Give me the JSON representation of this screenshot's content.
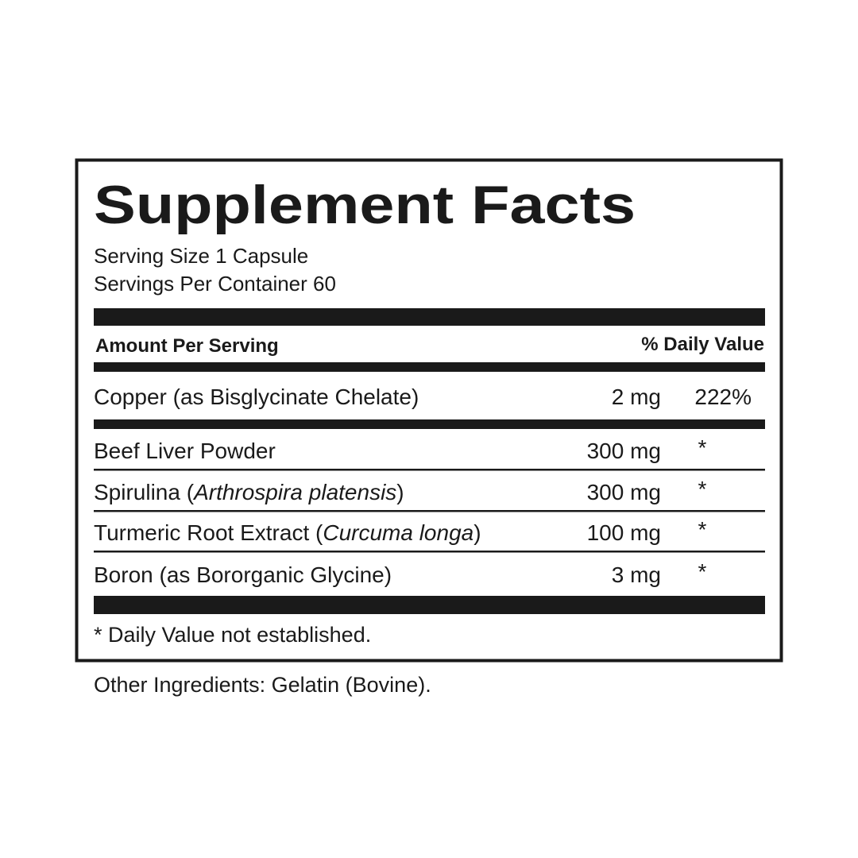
{
  "title": "Supplement Facts",
  "serving_size": "Serving Size 1 Capsule",
  "servings_per_container": "Servings Per Container 60",
  "header": {
    "amount": "Amount Per Serving",
    "daily_value": "% Daily Value"
  },
  "rows": [
    {
      "name": [
        {
          "text": "Copper (as Bisglycinate Chelate)",
          "italic": false
        }
      ],
      "amount": "2 mg",
      "dv": "222%"
    },
    {
      "name": [
        {
          "text": "Beef Liver Powder",
          "italic": false
        }
      ],
      "amount": "300 mg",
      "dv": "*"
    },
    {
      "name": [
        {
          "text": "Spirulina (",
          "italic": false
        },
        {
          "text": "Arthrospira platensis",
          "italic": true
        },
        {
          "text": ")",
          "italic": false
        }
      ],
      "amount": "300 mg",
      "dv": "*"
    },
    {
      "name": [
        {
          "text": "Turmeric Root Extract (",
          "italic": false
        },
        {
          "text": "Curcuma longa",
          "italic": true
        },
        {
          "text": ")",
          "italic": false
        }
      ],
      "amount": "100 mg",
      "dv": "*"
    },
    {
      "name": [
        {
          "text": "Boron (as Bororganic Glycine)",
          "italic": false
        }
      ],
      "amount": "3 mg",
      "dv": "*"
    }
  ],
  "footnote": "* Daily Value not established.",
  "other_ingredients": "Other Ingredients: Gelatin (Bovine)."
}
